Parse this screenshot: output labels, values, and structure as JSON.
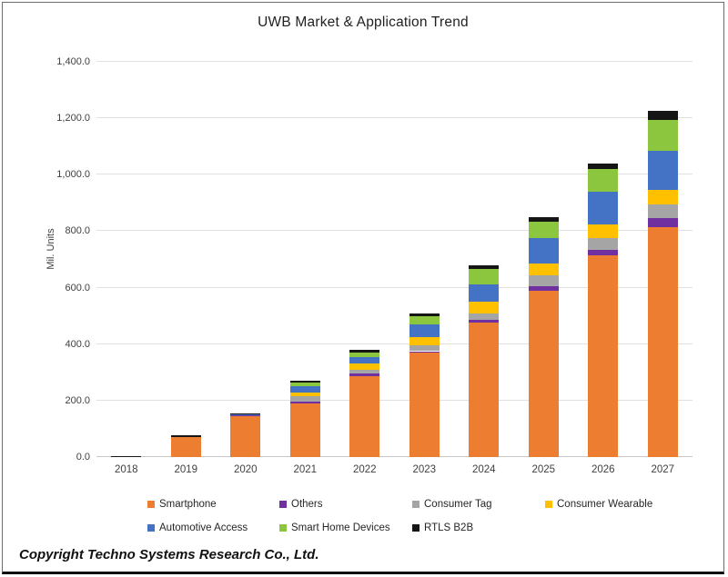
{
  "frame": {
    "copyright": "Copyright Techno Systems Research Co., Ltd."
  },
  "chart_data": {
    "type": "bar",
    "stacked": true,
    "title": "UWB Market & Application Trend",
    "xlabel": "",
    "ylabel": "Mil. Units",
    "categories": [
      "2018",
      "2019",
      "2020",
      "2021",
      "2022",
      "2023",
      "2024",
      "2025",
      "2026",
      "2027"
    ],
    "series": [
      {
        "name": "Smartphone",
        "color": "#ED7D31",
        "values": [
          0,
          70,
          147,
          190,
          285,
          370,
          475,
          590,
          715,
          815
        ]
      },
      {
        "name": "Others",
        "color": "#7030A0",
        "values": [
          0,
          0,
          1,
          5,
          10,
          5,
          10,
          15,
          20,
          30
        ]
      },
      {
        "name": "Consumer Tag",
        "color": "#A5A5A5",
        "values": [
          0,
          0,
          0,
          20,
          15,
          20,
          25,
          40,
          40,
          50
        ]
      },
      {
        "name": "Consumer Wearable",
        "color": "#FFC000",
        "values": [
          0,
          0,
          0,
          15,
          20,
          30,
          40,
          40,
          50,
          50
        ]
      },
      {
        "name": "Automotive Access",
        "color": "#4472C4",
        "values": [
          0,
          2,
          4,
          20,
          25,
          45,
          60,
          90,
          115,
          140
        ]
      },
      {
        "name": "Smart Home Devices",
        "color": "#8CC63F",
        "values": [
          0,
          0,
          0,
          15,
          15,
          30,
          55,
          60,
          80,
          110
        ]
      },
      {
        "name": "RTLS B2B",
        "color": "#151515",
        "values": [
          2,
          4,
          4,
          5,
          10,
          10,
          15,
          15,
          20,
          30
        ]
      }
    ],
    "totals": [
      2,
      76,
      156,
      270,
      380,
      510,
      680,
      850,
      1040,
      1225
    ],
    "ylim": [
      0,
      1400
    ],
    "ytick_step": 200,
    "ytick_labels": [
      "0.0",
      "200.0",
      "400.0",
      "600.0",
      "800.0",
      "1,000.0",
      "1,200.0",
      "1,400.0"
    ],
    "grid": true,
    "legend_position": "bottom"
  }
}
